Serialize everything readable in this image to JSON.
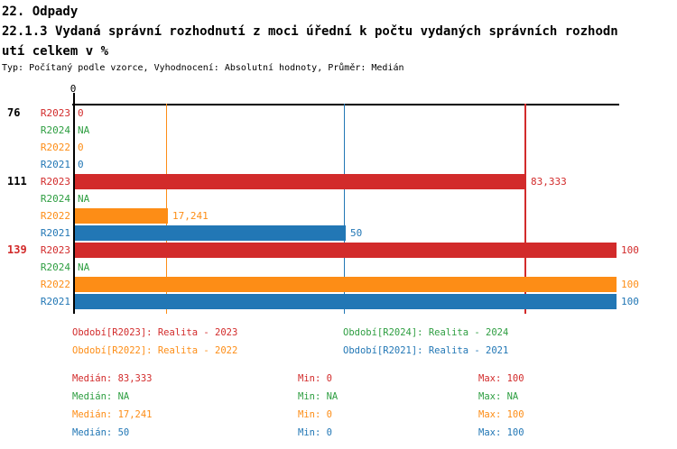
{
  "header": {
    "section": "22. Odpady",
    "title_line1": "22.1.3 Vydaná správní rozhodnutí z moci úřední k počtu vydaných správních rozhodn",
    "title_line2": "utí celkem v %",
    "subtitle": "Typ: Počítaný podle vzorce, Vyhodnocení: Absolutní hodnoty, Průměr: Medián"
  },
  "colors": {
    "R2023": "#d22b2b",
    "R2024": "#2e9e41",
    "R2022": "#fd8d16",
    "R2021": "#2277b5",
    "axis": "#000000"
  },
  "chart_data": {
    "type": "bar",
    "orientation": "horizontal",
    "title": "22.1.3 Vydaná správní rozhodnutí z moci úřední k počtu vydaných správních rozhodnutí celkem v %",
    "axis": {
      "tick_label": "0",
      "xlim": [
        0,
        100
      ],
      "grid": false
    },
    "series_order": [
      "R2023",
      "R2024",
      "R2022",
      "R2021"
    ],
    "groups": [
      {
        "id": "76",
        "id_color": "#000000",
        "rows": [
          {
            "series": "R2023",
            "value": 0,
            "display": "0"
          },
          {
            "series": "R2024",
            "value": null,
            "display": "NA"
          },
          {
            "series": "R2022",
            "value": 0,
            "display": "0"
          },
          {
            "series": "R2021",
            "value": 0,
            "display": "0"
          }
        ]
      },
      {
        "id": "111",
        "id_color": "#000000",
        "rows": [
          {
            "series": "R2023",
            "value": 83.333,
            "display": "83,333"
          },
          {
            "series": "R2024",
            "value": null,
            "display": "NA"
          },
          {
            "series": "R2022",
            "value": 17.241,
            "display": "17,241"
          },
          {
            "series": "R2021",
            "value": 50,
            "display": "50"
          }
        ]
      },
      {
        "id": "139",
        "id_color": "#d22b2b",
        "rows": [
          {
            "series": "R2023",
            "value": 100,
            "display": "100"
          },
          {
            "series": "R2024",
            "value": null,
            "display": "NA"
          },
          {
            "series": "R2022",
            "value": 100,
            "display": "100"
          },
          {
            "series": "R2021",
            "value": 100,
            "display": "100"
          }
        ]
      }
    ],
    "median_lines": [
      {
        "series": "R2022",
        "value": 17.241
      },
      {
        "series": "R2021",
        "value": 50
      },
      {
        "series": "R2023",
        "value": 83.333
      }
    ],
    "legend_position": "bottom"
  },
  "legend": {
    "items": [
      {
        "series": "R2023",
        "text": "Období[R2023]: Realita - 2023"
      },
      {
        "series": "R2024",
        "text": "Období[R2024]: Realita - 2024"
      },
      {
        "series": "R2022",
        "text": "Období[R2022]: Realita - 2022"
      },
      {
        "series": "R2021",
        "text": "Období[R2021]: Realita - 2021"
      }
    ]
  },
  "stats": {
    "rows": [
      {
        "series": "R2023",
        "median": "Medián: 83,333",
        "min": "Min: 0",
        "max": "Max: 100"
      },
      {
        "series": "R2024",
        "median": "Medián: NA",
        "min": "Min: NA",
        "max": "Max: NA"
      },
      {
        "series": "R2022",
        "median": "Medián: 17,241",
        "min": "Min: 0",
        "max": "Max: 100"
      },
      {
        "series": "R2021",
        "median": "Medián: 50",
        "min": "Min: 0",
        "max": "Max: 100"
      }
    ]
  }
}
